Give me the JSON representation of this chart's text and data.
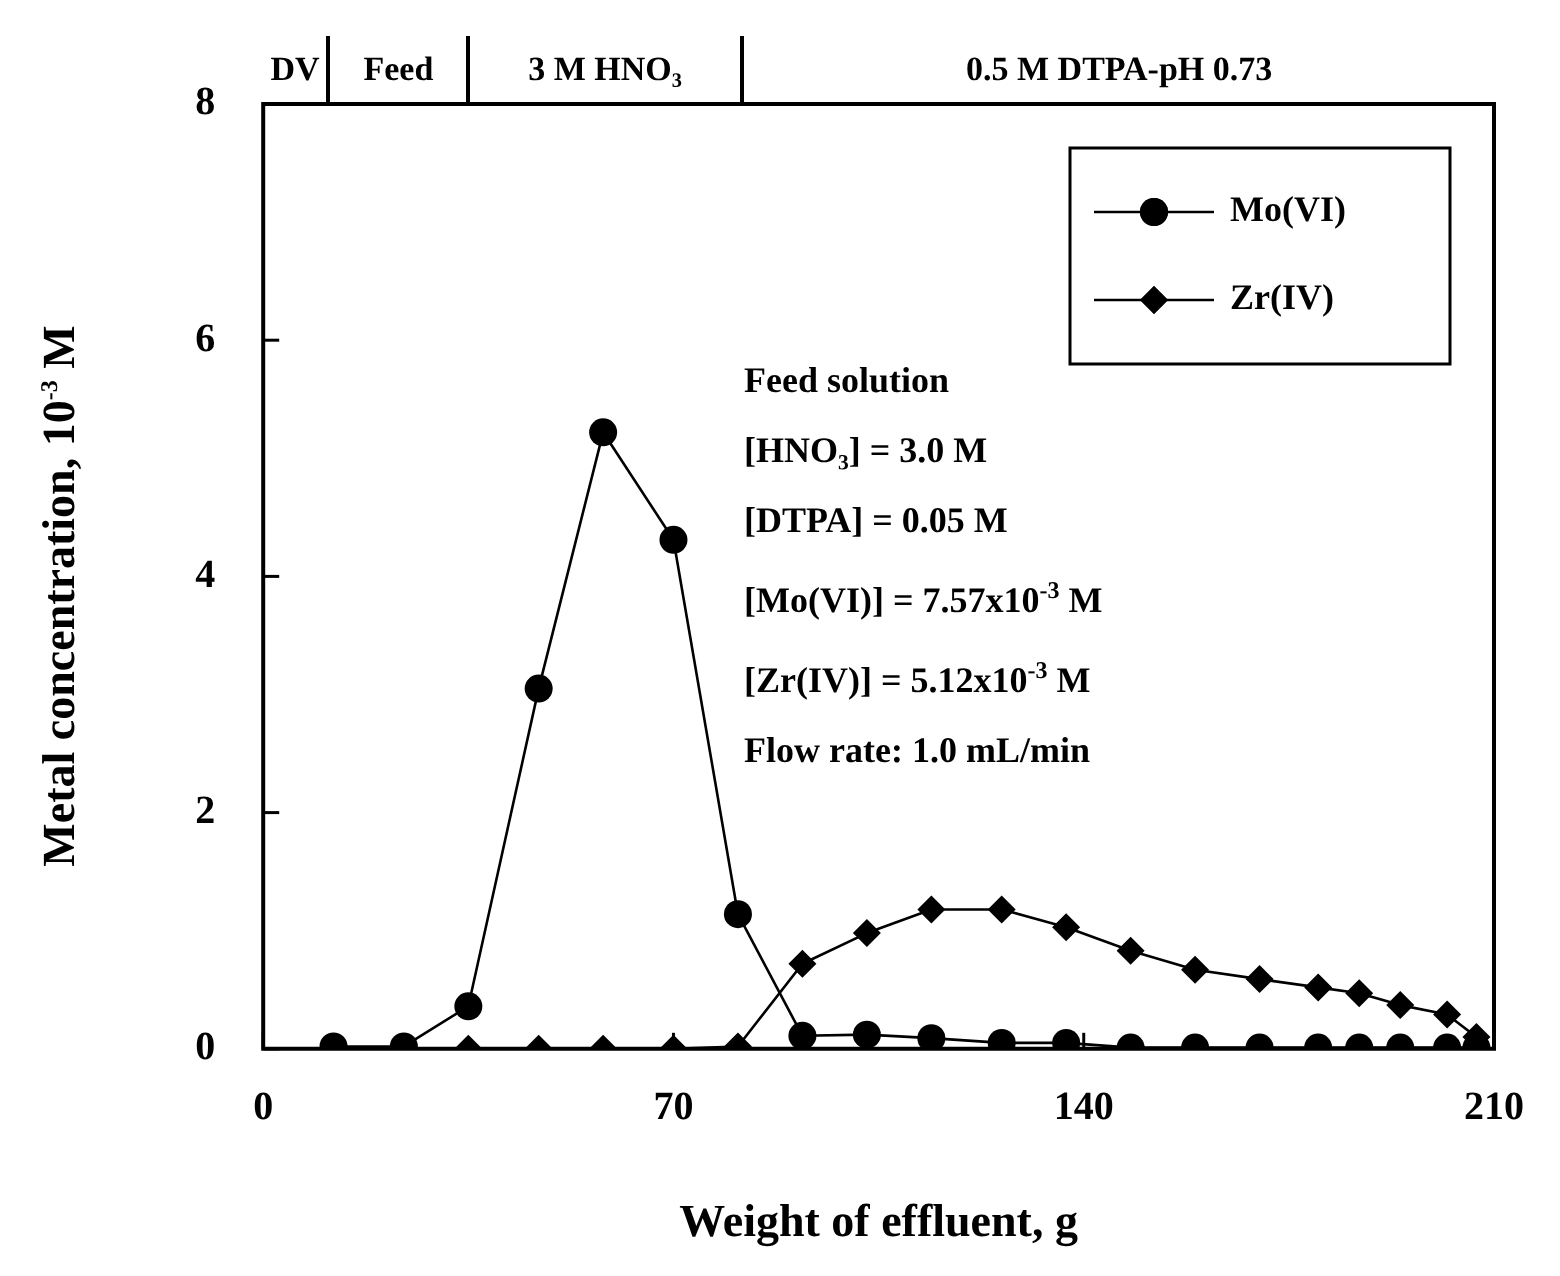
{
  "chart_data": {
    "type": "line",
    "xlabel": "Weight of effluent, g",
    "ylabel": "Metal concentration, 10$^{-3}$ M",
    "xlim": [
      0,
      210
    ],
    "xticks": [
      0,
      70,
      140,
      210
    ],
    "ylim": [
      0,
      8
    ],
    "yticks": [
      0,
      2,
      4,
      6,
      8
    ],
    "grid": false,
    "legend": "top right",
    "line_style": "solid",
    "x": [
      12,
      24,
      35,
      47,
      58,
      70,
      81,
      92,
      103,
      114,
      126,
      137,
      148,
      159,
      170,
      180,
      187,
      194,
      202,
      207
    ],
    "series": [
      {
        "name": "Mo(VI)",
        "color": "#000000",
        "marker": "circle",
        "values": [
          0.02,
          0.02,
          0.36,
          3.05,
          5.22,
          4.31,
          1.14,
          0.11,
          0.12,
          0.09,
          0.05,
          0.05,
          0.01,
          0.01,
          0.01,
          0.01,
          0.01,
          0.01,
          0.01,
          0.01
        ]
      },
      {
        "name": "Zr(IV)",
        "color": "#000000",
        "marker": "diamond",
        "values": [
          0.0,
          0.0,
          0.0,
          0.0,
          0.0,
          0.0,
          0.02,
          0.72,
          0.98,
          1.18,
          1.18,
          1.03,
          0.83,
          0.67,
          0.59,
          0.52,
          0.47,
          0.37,
          0.29,
          0.1
        ]
      }
    ],
    "annotations": [
      "DV",
      "Feed",
      "3 M HNO₃",
      "0.5 M DTPA-pH 0.73",
      "Feed solution",
      "[HNO₃] = 3.0 M",
      "[DTPA] = 0.05 M",
      "[Mo(VI)] = 7.57x10$^{-3}$ M",
      "[Zr(IV)] = 5.12x10$^{-3}$ M",
      "Flow rate: 1.0 mL/min"
    ]
  }
}
